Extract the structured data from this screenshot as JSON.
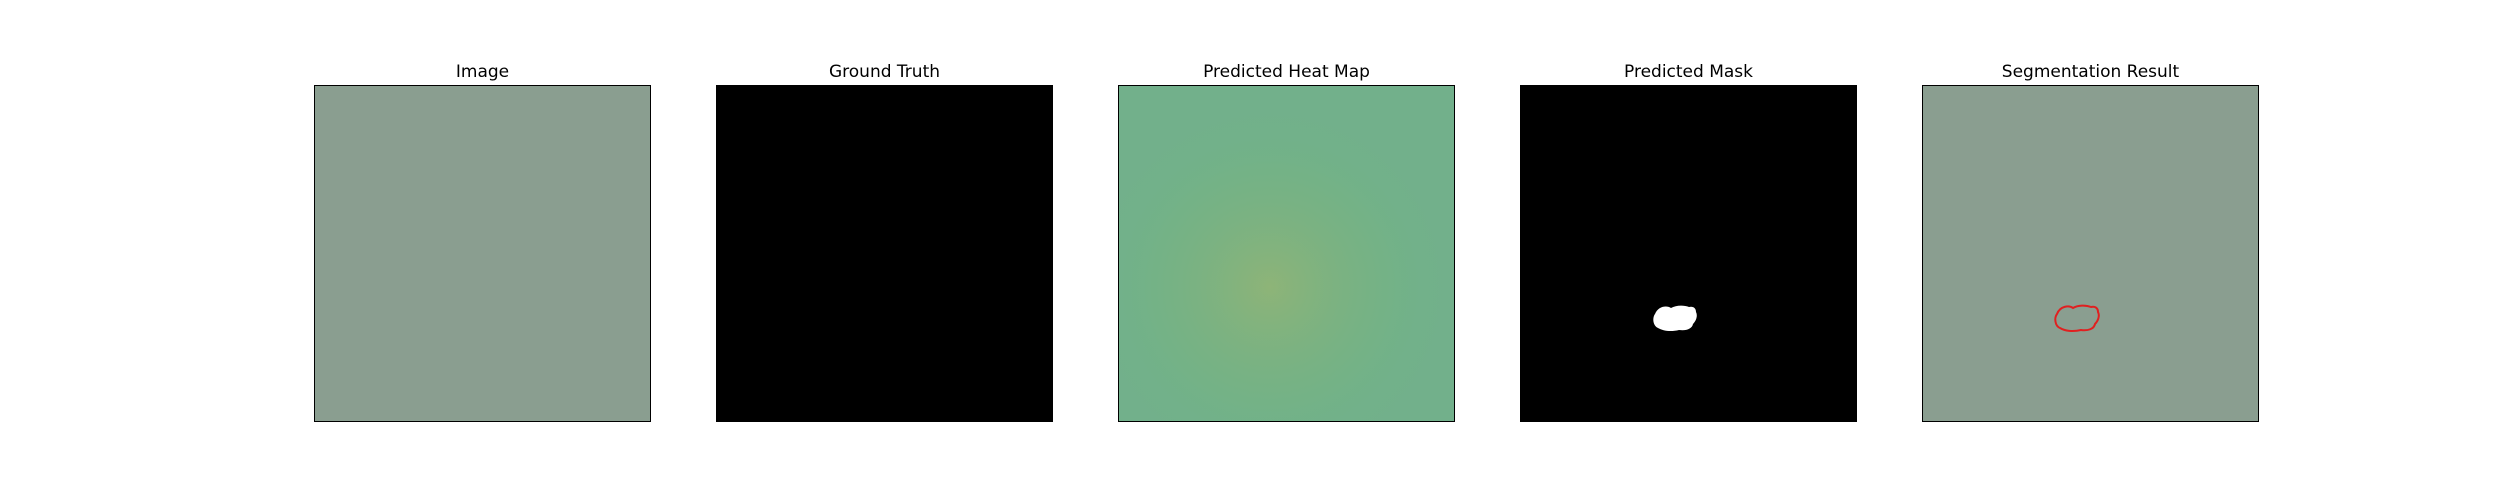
{
  "figure": {
    "panels": [
      {
        "title": "Image"
      },
      {
        "title": "Ground Truth"
      },
      {
        "title": "Predicted Heat Map"
      },
      {
        "title": "Predicted Mask"
      },
      {
        "title": "Segmentation Result"
      }
    ]
  },
  "colors": {
    "texture_base": "#8a9e90",
    "texture_spot": "#3e3e3c",
    "ground_truth_fill": "#000000",
    "heatmap_tint": "#5fbf86",
    "heatmap_warm": "#a8c060",
    "mask_background": "#000000",
    "mask_foreground": "#ffffff",
    "contour": "#e02020"
  }
}
